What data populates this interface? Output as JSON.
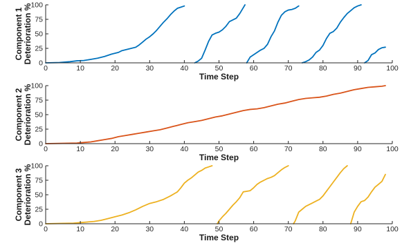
{
  "chart_data": [
    {
      "type": "line",
      "xlabel": "Time Step",
      "ylabel": "Component 1 Deterioration %",
      "ylabel_lines": [
        "Component 1",
        "Deterioration %"
      ],
      "xlim": [
        0,
        100
      ],
      "ylim": [
        0,
        100
      ],
      "xticks": [
        0,
        10,
        20,
        30,
        40,
        50,
        60,
        70,
        80,
        90,
        100
      ],
      "yticks": [
        0,
        25,
        50,
        75,
        100
      ],
      "grid": false,
      "series": [
        {
          "color": "#0072BD",
          "segments": [
            [
              [
                0,
                0
              ],
              [
                4,
                0.5
              ],
              [
                7,
                2
              ],
              [
                9,
                3.5
              ],
              [
                11,
                4
              ],
              [
                13,
                6
              ],
              [
                15,
                8
              ],
              [
                17,
                11
              ],
              [
                19,
                15
              ],
              [
                21,
                18
              ],
              [
                22,
                21
              ],
              [
                24,
                24
              ],
              [
                26,
                27
              ],
              [
                27,
                31
              ],
              [
                28,
                36
              ],
              [
                29,
                41
              ],
              [
                30,
                45
              ],
              [
                31,
                50
              ],
              [
                32,
                56
              ],
              [
                33,
                63
              ],
              [
                34,
                70
              ],
              [
                35,
                76
              ],
              [
                36,
                83
              ],
              [
                37,
                89
              ],
              [
                38,
                94
              ],
              [
                39,
                96
              ],
              [
                40,
                98
              ]
            ],
            [
              [
                43,
                0
              ],
              [
                44,
                3
              ],
              [
                45,
                8
              ],
              [
                46,
                22
              ],
              [
                47,
                37
              ],
              [
                48,
                48
              ],
              [
                49,
                51
              ],
              [
                50,
                53
              ],
              [
                51,
                57
              ],
              [
                52,
                63
              ],
              [
                53,
                71
              ],
              [
                54,
                74
              ],
              [
                55,
                77
              ],
              [
                56,
                85
              ],
              [
                57,
                95
              ],
              [
                57.5,
                100
              ]
            ],
            [
              [
                58,
                0
              ],
              [
                59,
                10
              ],
              [
                60,
                14
              ],
              [
                61,
                18
              ],
              [
                62,
                22
              ],
              [
                63,
                25
              ],
              [
                64,
                32
              ],
              [
                65,
                45
              ],
              [
                66,
                55
              ],
              [
                67,
                70
              ],
              [
                68,
                82
              ],
              [
                69,
                88
              ],
              [
                70,
                91
              ],
              [
                71,
                92
              ],
              [
                72,
                94
              ],
              [
                73,
                98
              ]
            ],
            [
              [
                74,
                0
              ],
              [
                75,
                2
              ],
              [
                76,
                5
              ],
              [
                77,
                10
              ],
              [
                78,
                18
              ],
              [
                79,
                22
              ],
              [
                80,
                30
              ],
              [
                81,
                42
              ],
              [
                82,
                51
              ],
              [
                83,
                54
              ],
              [
                84,
                60
              ],
              [
                85,
                70
              ],
              [
                86,
                78
              ],
              [
                87,
                85
              ],
              [
                88,
                90
              ],
              [
                89,
                95
              ],
              [
                90,
                98
              ],
              [
                91,
                100
              ]
            ],
            [
              [
                92,
                0
              ],
              [
                93,
                4
              ],
              [
                94,
                14
              ],
              [
                95,
                17
              ],
              [
                96,
                23
              ],
              [
                97,
                26
              ],
              [
                98,
                27
              ]
            ]
          ]
        }
      ]
    },
    {
      "type": "line",
      "xlabel": "Time Step",
      "ylabel": "Component 2 Deterioration %",
      "ylabel_lines": [
        "Component 2",
        "Deterioration %"
      ],
      "xlim": [
        0,
        100
      ],
      "ylim": [
        0,
        100
      ],
      "xticks": [
        0,
        10,
        20,
        30,
        40,
        50,
        60,
        70,
        80,
        90,
        100
      ],
      "yticks": [
        0,
        25,
        50,
        75,
        100
      ],
      "grid": false,
      "series": [
        {
          "color": "#D95319",
          "segments": [
            [
              [
                0,
                0
              ],
              [
                5,
                0.5
              ],
              [
                9,
                1
              ],
              [
                11,
                2
              ],
              [
                13,
                3
              ],
              [
                15,
                5
              ],
              [
                17,
                7
              ],
              [
                19,
                9
              ],
              [
                21,
                12
              ],
              [
                23,
                14
              ],
              [
                25,
                16
              ],
              [
                27,
                18
              ],
              [
                29,
                20
              ],
              [
                31,
                22
              ],
              [
                33,
                24
              ],
              [
                35,
                27
              ],
              [
                37,
                30
              ],
              [
                39,
                33
              ],
              [
                41,
                36
              ],
              [
                43,
                38
              ],
              [
                45,
                40
              ],
              [
                47,
                43
              ],
              [
                49,
                46
              ],
              [
                51,
                48
              ],
              [
                53,
                51
              ],
              [
                55,
                54
              ],
              [
                57,
                57
              ],
              [
                59,
                59
              ],
              [
                61,
                60
              ],
              [
                63,
                62
              ],
              [
                65,
                65
              ],
              [
                67,
                68
              ],
              [
                69,
                70
              ],
              [
                71,
                73
              ],
              [
                73,
                76
              ],
              [
                75,
                78
              ],
              [
                77,
                79
              ],
              [
                79,
                80
              ],
              [
                81,
                82
              ],
              [
                83,
                85
              ],
              [
                85,
                87
              ],
              [
                87,
                90
              ],
              [
                89,
                93
              ],
              [
                91,
                95
              ],
              [
                93,
                97
              ],
              [
                95,
                98
              ],
              [
                97,
                99
              ],
              [
                98,
                100
              ]
            ]
          ]
        }
      ]
    },
    {
      "type": "line",
      "xlabel": "Time Step",
      "ylabel": "Component 3 Deterioration %",
      "ylabel_lines": [
        "Component 3",
        "Deterioration %"
      ],
      "xlim": [
        0,
        100
      ],
      "ylim": [
        0,
        100
      ],
      "xticks": [
        0,
        10,
        20,
        30,
        40,
        50,
        60,
        70,
        80,
        90,
        100
      ],
      "yticks": [
        0,
        25,
        50,
        75,
        100
      ],
      "grid": false,
      "series": [
        {
          "color": "#EDB120",
          "segments": [
            [
              [
                0,
                0
              ],
              [
                4,
                0.5
              ],
              [
                8,
                1
              ],
              [
                10,
                2
              ],
              [
                12,
                3
              ],
              [
                14,
                4
              ],
              [
                16,
                6
              ],
              [
                18,
                9
              ],
              [
                20,
                12
              ],
              [
                22,
                15
              ],
              [
                24,
                19
              ],
              [
                26,
                24
              ],
              [
                28,
                30
              ],
              [
                30,
                35
              ],
              [
                32,
                38
              ],
              [
                34,
                42
              ],
              [
                36,
                48
              ],
              [
                38,
                55
              ],
              [
                39,
                62
              ],
              [
                40,
                70
              ],
              [
                41,
                75
              ],
              [
                42,
                79
              ],
              [
                43,
                84
              ],
              [
                44,
                89
              ],
              [
                45,
                92
              ],
              [
                46,
                96
              ],
              [
                47,
                98
              ],
              [
                48,
                100
              ]
            ],
            [
              [
                49.5,
                0
              ],
              [
                50,
                5
              ],
              [
                51,
                12
              ],
              [
                52,
                18
              ],
              [
                53,
                25
              ],
              [
                54,
                32
              ],
              [
                55,
                38
              ],
              [
                56,
                45
              ],
              [
                57,
                55
              ],
              [
                58,
                56
              ],
              [
                59,
                57
              ],
              [
                60,
                62
              ],
              [
                61,
                68
              ],
              [
                62,
                72
              ],
              [
                63,
                75
              ],
              [
                64,
                78
              ],
              [
                65,
                80
              ],
              [
                66,
                83
              ],
              [
                67,
                88
              ],
              [
                68,
                93
              ],
              [
                69,
                97
              ],
              [
                70,
                100
              ]
            ],
            [
              [
                71.5,
                0
              ],
              [
                72,
                5
              ],
              [
                73,
                20
              ],
              [
                74,
                25
              ],
              [
                75,
                30
              ],
              [
                76,
                33
              ],
              [
                77,
                36
              ],
              [
                78,
                39
              ],
              [
                79,
                42
              ],
              [
                80,
                48
              ],
              [
                81,
                56
              ],
              [
                82,
                64
              ],
              [
                83,
                72
              ],
              [
                84,
                80
              ],
              [
                85,
                88
              ],
              [
                86,
                95
              ],
              [
                87,
                100
              ]
            ],
            [
              [
                88,
                0
              ],
              [
                89,
                20
              ],
              [
                90,
                30
              ],
              [
                91,
                38
              ],
              [
                92,
                40
              ],
              [
                93,
                46
              ],
              [
                94,
                55
              ],
              [
                95,
                63
              ],
              [
                96,
                68
              ],
              [
                97,
                73
              ],
              [
                98,
                85
              ]
            ]
          ]
        }
      ]
    }
  ]
}
